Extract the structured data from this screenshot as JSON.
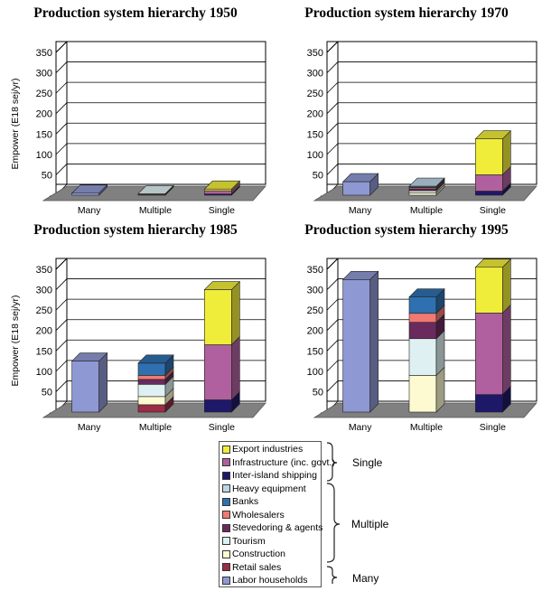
{
  "chart_data": [
    {
      "type": "bar",
      "title": "Production system hierarchy 1950",
      "ylabel": "Empower (E18 sej/yr)",
      "ylim": [
        0,
        350
      ],
      "yticks": [
        "-",
        "50",
        "100",
        "150",
        "200",
        "250",
        "300",
        "350"
      ],
      "categories": [
        "Many",
        "Multiple",
        "Single"
      ],
      "stacks": [
        [
          {
            "series": "Labor households",
            "value": 5
          }
        ],
        [
          {
            "series": "Retail sales",
            "value": 1
          },
          {
            "series": "Construction",
            "value": 1
          },
          {
            "series": "Tourism",
            "value": 1
          }
        ],
        [
          {
            "series": "Inter-island shipping",
            "value": 3
          },
          {
            "series": "Infrastructure (inc. govt.)",
            "value": 8
          },
          {
            "series": "Export industries",
            "value": 4
          }
        ]
      ]
    },
    {
      "type": "bar",
      "title": "Production system hierarchy 1970",
      "ylabel": "",
      "ylim": [
        0,
        350
      ],
      "yticks": [
        "-",
        "50",
        "100",
        "150",
        "200",
        "250",
        "300",
        "350"
      ],
      "categories": [
        "Many",
        "Multiple",
        "Single"
      ],
      "stacks": [
        [
          {
            "series": "Labor households",
            "value": 33
          }
        ],
        [
          {
            "series": "Construction",
            "value": 6
          },
          {
            "series": "Tourism",
            "value": 5
          },
          {
            "series": "Stevedoring & agents",
            "value": 4
          },
          {
            "series": "Wholesalers",
            "value": 3
          },
          {
            "series": "Banks",
            "value": 2
          },
          {
            "series": "Heavy equipment",
            "value": 2
          }
        ],
        [
          {
            "series": "Inter-island shipping",
            "value": 10
          },
          {
            "series": "Infrastructure (inc. govt.)",
            "value": 40
          },
          {
            "series": "Export industries",
            "value": 88
          }
        ]
      ]
    },
    {
      "type": "bar",
      "title": "Production system hierarchy 1985",
      "ylabel": "Empower (E18 sej/yr)",
      "ylim": [
        0,
        350
      ],
      "yticks": [
        "-",
        "50",
        "100",
        "150",
        "200",
        "250",
        "300",
        "350"
      ],
      "categories": [
        "Many",
        "Multiple",
        "Single"
      ],
      "stacks": [
        [
          {
            "series": "Labor households",
            "value": 125
          }
        ],
        [
          {
            "series": "Retail sales",
            "value": 18
          },
          {
            "series": "Construction",
            "value": 20
          },
          {
            "series": "Tourism",
            "value": 30
          },
          {
            "series": "Stevedoring & agents",
            "value": 12
          },
          {
            "series": "Wholesalers",
            "value": 10
          },
          {
            "series": "Banks",
            "value": 30
          }
        ],
        [
          {
            "series": "Inter-island shipping",
            "value": 30
          },
          {
            "series": "Infrastructure (inc. govt.)",
            "value": 135
          },
          {
            "series": "Export industries",
            "value": 135
          }
        ]
      ]
    },
    {
      "type": "bar",
      "title": "Production system hierarchy 1995",
      "ylabel": "",
      "ylim": [
        0,
        350
      ],
      "yticks": [
        "-",
        "50",
        "100",
        "150",
        "200",
        "250",
        "300",
        "350"
      ],
      "categories": [
        "Many",
        "Multiple",
        "Single"
      ],
      "stacks": [
        [
          {
            "series": "Labor households",
            "value": 325
          }
        ],
        [
          {
            "series": "Construction",
            "value": 90
          },
          {
            "series": "Tourism",
            "value": 90
          },
          {
            "series": "Stevedoring & agents",
            "value": 40
          },
          {
            "series": "Wholesalers",
            "value": 22
          },
          {
            "series": "Banks",
            "value": 40
          }
        ],
        [
          {
            "series": "Inter-island shipping",
            "value": 43
          },
          {
            "series": "Infrastructure (inc. govt.)",
            "value": 200
          },
          {
            "series": "Export industries",
            "value": 112
          }
        ]
      ]
    }
  ],
  "legend": {
    "items": [
      {
        "label": "Export industries",
        "color": "#f0ec3a"
      },
      {
        "label": "Infrastructure (inc. govt.)",
        "color": "#b0609e"
      },
      {
        "label": "Inter-island shipping",
        "color": "#1e1868"
      },
      {
        "label": "Heavy equipment",
        "color": "#bcd6e6"
      },
      {
        "label": "Banks",
        "color": "#2e70b0"
      },
      {
        "label": "Wholesalers",
        "color": "#f07a72"
      },
      {
        "label": "Stevedoring & agents",
        "color": "#6a2a5e"
      },
      {
        "label": "Tourism",
        "color": "#def0f2"
      },
      {
        "label": "Construction",
        "color": "#fdfad2"
      },
      {
        "label": "Retail sales",
        "color": "#9a2c46"
      },
      {
        "label": "Labor households",
        "color": "#8e98d2"
      }
    ],
    "groups": {
      "single": "Single",
      "multiple": "Multiple",
      "many": "Many"
    }
  },
  "colors": {
    "floor": "#808080",
    "wall_line": "#000000",
    "grid_line": "#000000"
  }
}
